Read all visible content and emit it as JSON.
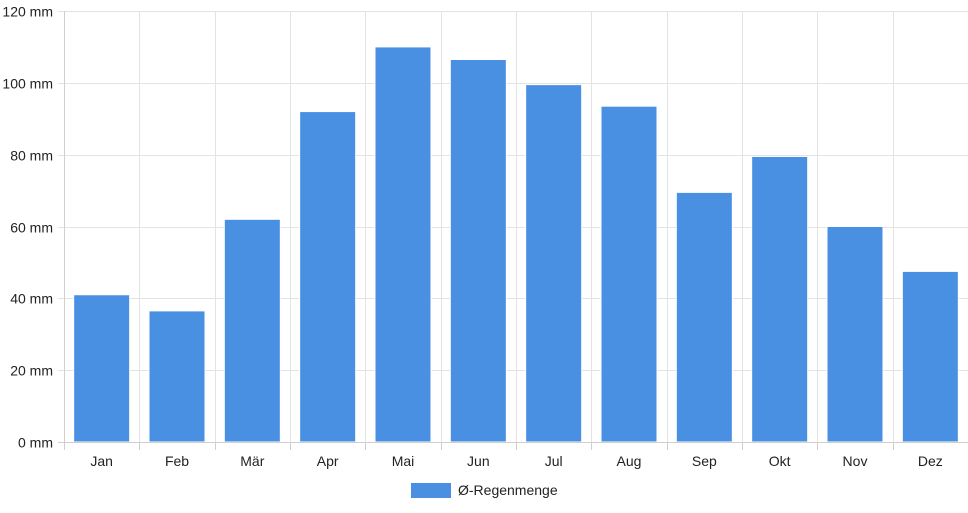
{
  "chart_data": {
    "type": "bar",
    "categories": [
      "Jan",
      "Feb",
      "Mär",
      "Apr",
      "Mai",
      "Jun",
      "Jul",
      "Aug",
      "Sep",
      "Okt",
      "Nov",
      "Dez"
    ],
    "series": [
      {
        "name": "Ø-Regenmenge",
        "values": [
          41,
          36.5,
          62,
          92,
          110,
          106.5,
          99.5,
          93.5,
          69.5,
          79.5,
          60,
          47.5
        ]
      }
    ],
    "ylim": [
      0,
      120
    ],
    "yticks": [
      0,
      20,
      40,
      60,
      80,
      100,
      120
    ],
    "ytick_suffix": " mm",
    "grid": true,
    "legend_position": "bottom",
    "colors": {
      "bar": "#4a90e2"
    }
  }
}
